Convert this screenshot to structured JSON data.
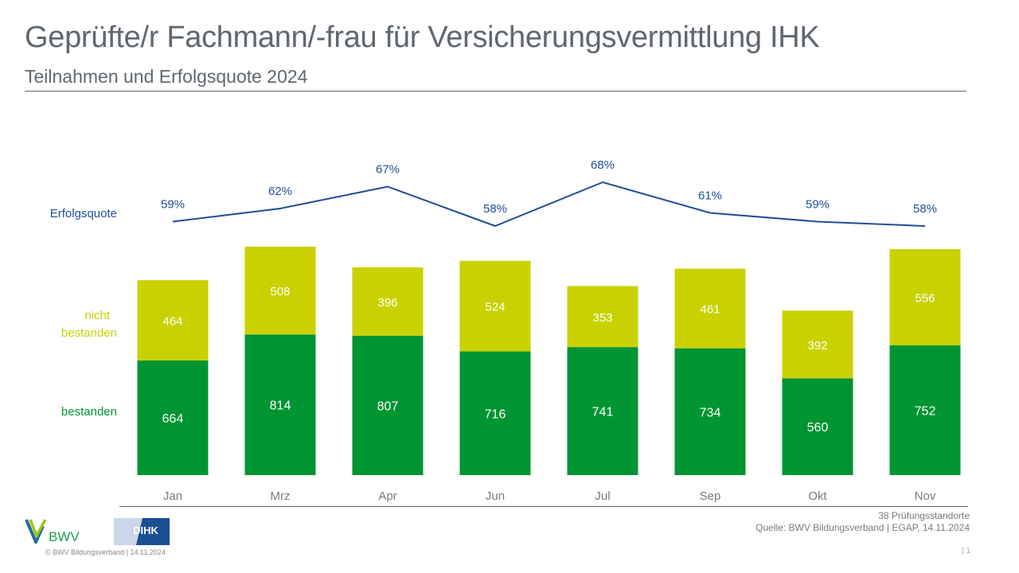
{
  "header": {
    "title": "Geprüfte/r Fachmann/-frau für Versicherungsvermittlung IHK",
    "subtitle": "Teilnahmen und Erfolgsquote 2024"
  },
  "colors": {
    "bestanden": "#009432",
    "nicht_bestanden": "#c9d200",
    "erfolgsquote": "#1f4e96",
    "title_text": "#5f6770"
  },
  "chart_data": {
    "type": "bar",
    "stacked": true,
    "title": "Teilnahmen und Erfolgsquote 2024",
    "categories": [
      "Jan",
      "Mrz",
      "Apr",
      "Jun",
      "Jul",
      "Sep",
      "Okt",
      "Nov"
    ],
    "series": [
      {
        "name": "bestanden",
        "values": [
          664,
          814,
          807,
          716,
          741,
          734,
          560,
          752
        ]
      },
      {
        "name": "nicht bestanden",
        "values": [
          464,
          508,
          396,
          524,
          353,
          461,
          392,
          556
        ]
      }
    ],
    "line_series": {
      "name": "Erfolgsquote",
      "type": "line",
      "values": [
        59,
        62,
        67,
        58,
        68,
        61,
        59,
        58
      ],
      "labels": [
        "59%",
        "62%",
        "67%",
        "58%",
        "68%",
        "61%",
        "59%",
        "58%"
      ],
      "unit": "%"
    },
    "legend_labels": {
      "erfolgsquote": "Erfolgsquote",
      "nicht_bestanden_line1": "nicht",
      "nicht_bestanden_line2": "bestanden",
      "bestanden": "bestanden"
    },
    "xlabel": "",
    "ylabel": "",
    "ylim": [
      0,
      1400
    ],
    "grid": false,
    "legend": "left"
  },
  "footer": {
    "standorte": "38 Prüfungsstandorte",
    "source": "Quelle: BWV Bildungsverband | EGAP, 14.11.2024",
    "copyright": "©  BWV Bildungsverband  |  14.11.2024",
    "page": "|  1",
    "bwv_logo_text": "BWV",
    "dihk_logo_text": "DIHK"
  }
}
